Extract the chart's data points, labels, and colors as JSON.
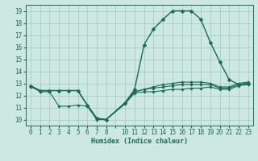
{
  "xlabel": "Humidex (Indice chaleur)",
  "bg_color": "#cce8e0",
  "grid_color": "#aaccc4",
  "line_color": "#1a6b5a",
  "spine_color": "#1a6b5a",
  "xlim": [
    -0.5,
    23.5
  ],
  "ylim": [
    9.5,
    19.5
  ],
  "xtick_positions": [
    0,
    1,
    2,
    3,
    4,
    5,
    6,
    7,
    8,
    9,
    10,
    11,
    12,
    13,
    14,
    15,
    16,
    17,
    18,
    19,
    20,
    21,
    22,
    23
  ],
  "xtick_labels": [
    "0",
    "1",
    "2",
    "3",
    "4",
    "5",
    "6",
    "7",
    "8",
    "",
    "10",
    "11",
    "12",
    "13",
    "14",
    "15",
    "16",
    "17",
    "18",
    "19",
    "20",
    "21",
    "22",
    "23"
  ],
  "yticks": [
    10,
    11,
    12,
    13,
    14,
    15,
    16,
    17,
    18,
    19
  ],
  "series": [
    {
      "x": [
        0,
        1,
        2,
        3,
        4,
        5,
        6,
        7,
        8,
        10,
        11,
        12,
        13,
        14,
        15,
        16,
        17,
        18,
        19,
        20,
        21,
        22,
        23
      ],
      "y": [
        12.8,
        12.4,
        12.4,
        12.4,
        12.4,
        12.4,
        11.2,
        10.1,
        10.0,
        11.4,
        12.5,
        16.2,
        17.5,
        18.3,
        19.0,
        19.0,
        19.0,
        18.3,
        16.4,
        14.8,
        13.3,
        12.9,
        13.0
      ],
      "marker": "D",
      "markersize": 2.5,
      "linewidth": 1.0
    },
    {
      "x": [
        0,
        1,
        2,
        3,
        4,
        5,
        6,
        7,
        8,
        10,
        11,
        12,
        13,
        14,
        15,
        16,
        17,
        18,
        19,
        20,
        21,
        22,
        23
      ],
      "y": [
        12.8,
        12.3,
        12.3,
        11.1,
        11.1,
        11.2,
        11.1,
        10.0,
        10.0,
        11.3,
        12.2,
        12.3,
        12.3,
        12.4,
        12.5,
        12.5,
        12.6,
        12.6,
        12.7,
        12.5,
        12.5,
        12.8,
        12.9
      ],
      "marker": "D",
      "markersize": 1.8,
      "linewidth": 0.8
    },
    {
      "x": [
        0,
        1,
        2,
        3,
        4,
        5,
        6,
        7,
        8,
        10,
        11,
        12,
        13,
        14,
        15,
        16,
        17,
        18,
        19,
        20,
        21,
        22,
        23
      ],
      "y": [
        12.7,
        12.4,
        12.4,
        12.4,
        12.4,
        12.4,
        11.2,
        10.1,
        10.0,
        11.4,
        12.3,
        12.5,
        12.6,
        12.7,
        12.8,
        12.9,
        12.9,
        12.9,
        12.9,
        12.6,
        12.6,
        12.9,
        13.0
      ],
      "marker": "D",
      "markersize": 1.8,
      "linewidth": 0.8
    },
    {
      "x": [
        0,
        1,
        2,
        3,
        4,
        5,
        6,
        7,
        8,
        10,
        11,
        12,
        13,
        14,
        15,
        16,
        17,
        18,
        19,
        20,
        21,
        22,
        23
      ],
      "y": [
        12.8,
        12.4,
        12.4,
        12.4,
        12.4,
        12.4,
        11.2,
        10.1,
        10.0,
        11.4,
        12.3,
        12.5,
        12.7,
        12.9,
        13.0,
        13.1,
        13.1,
        13.1,
        13.0,
        12.7,
        12.7,
        13.0,
        13.1
      ],
      "marker": "D",
      "markersize": 1.8,
      "linewidth": 0.8
    }
  ],
  "xlabel_fontsize": 6.0,
  "tick_fontsize": 5.5
}
